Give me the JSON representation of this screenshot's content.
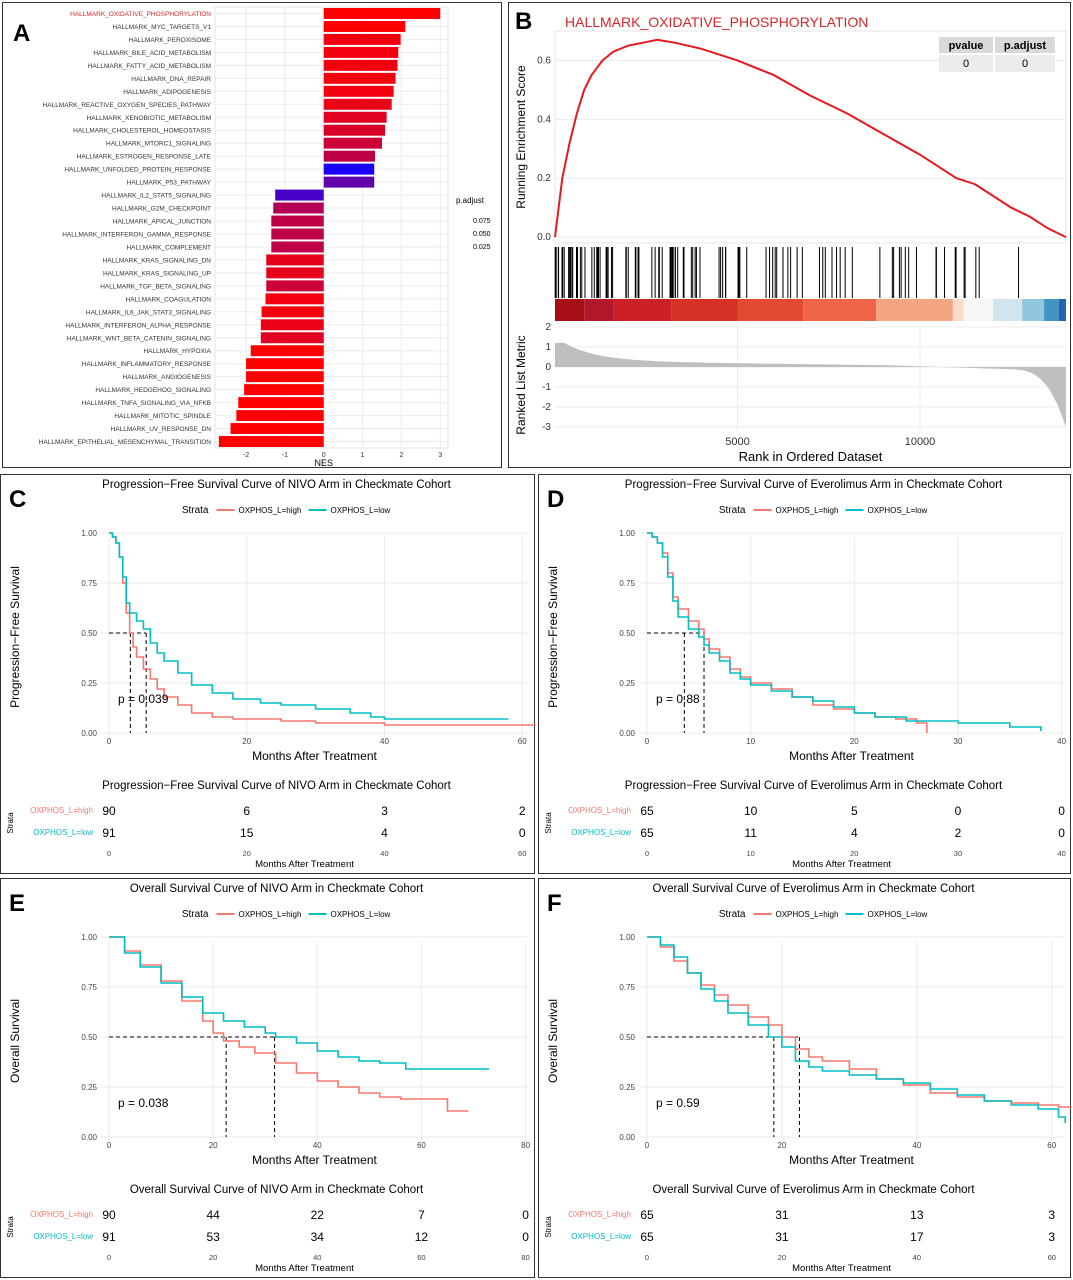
{
  "colors": {
    "high": "#f8766d",
    "low": "#00bfc4",
    "gsea_line": "#e41a1c",
    "ptitle": "#d62728"
  },
  "panelA": {
    "letter": "A",
    "xlabel": "NES",
    "legend_title": "p.adjust",
    "legend_ticks": [
      "0.075",
      "0.050",
      "0.025"
    ],
    "chart_data": {
      "type": "bar",
      "categories": [
        "HALLMARK_OXIDATIVE_PHOSPHORYLATION",
        "HALLMARK_MYC_TARGETS_V1",
        "HALLMARK_PEROXISOME",
        "HALLMARK_BILE_ACID_METABOLISM",
        "HALLMARK_FATTY_ACID_METABOLISM",
        "HALLMARK_DNA_REPAIR",
        "HALLMARK_ADIPOGENESIS",
        "HALLMARK_REACTIVE_OXYGEN_SPECIES_PATHWAY",
        "HALLMARK_XENOBIOTIC_METABOLISM",
        "HALLMARK_CHOLESTEROL_HOMEOSTASIS",
        "HALLMARK_MTORC1_SIGNALING",
        "HALLMARK_ESTROGEN_RESPONSE_LATE",
        "HALLMARK_UNFOLDED_PROTEIN_RESPONSE",
        "HALLMARK_P53_PATHWAY",
        "HALLMARK_IL2_STAT5_SIGNALING",
        "HALLMARK_G2M_CHECKPOINT",
        "HALLMARK_APICAL_JUNCTION",
        "HALLMARK_INTERFERON_GAMMA_RESPONSE",
        "HALLMARK_COMPLEMENT",
        "HALLMARK_KRAS_SIGNALING_DN",
        "HALLMARK_KRAS_SIGNALING_UP",
        "HALLMARK_TGF_BETA_SIGNALING",
        "HALLMARK_COAGULATION",
        "HALLMARK_IL6_JAK_STAT3_SIGNALING",
        "HALLMARK_INTERFERON_ALPHA_RESPONSE",
        "HALLMARK_WNT_BETA_CATENIN_SIGNALING",
        "HALLMARK_HYPOXIA",
        "HALLMARK_INFLAMMATORY_RESPONSE",
        "HALLMARK_ANGIOGENESIS",
        "HALLMARK_HEDGEHOG_SIGNALING",
        "HALLMARK_TNFA_SIGNALING_VIA_NFKB",
        "HALLMARK_MITOTIC_SPINDLE",
        "HALLMARK_UV_RESPONSE_DN",
        "HALLMARK_EPITHELIAL_MESENCHYMAL_TRANSITION"
      ],
      "values": [
        3.0,
        2.1,
        1.98,
        1.92,
        1.9,
        1.85,
        1.8,
        1.75,
        1.62,
        1.58,
        1.5,
        1.32,
        1.3,
        1.3,
        -1.25,
        -1.3,
        -1.35,
        -1.35,
        -1.35,
        -1.48,
        -1.48,
        -1.48,
        -1.5,
        -1.6,
        -1.62,
        -1.62,
        -1.88,
        -2.0,
        -2.0,
        -2.05,
        -2.2,
        -2.25,
        -2.4,
        -2.7
      ],
      "p_adjust": [
        0.0,
        0.0,
        0.005,
        0.005,
        0.005,
        0.005,
        0.005,
        0.008,
        0.012,
        0.015,
        0.02,
        0.025,
        0.088,
        0.06,
        0.07,
        0.03,
        0.025,
        0.025,
        0.025,
        0.01,
        0.01,
        0.02,
        0.005,
        0.005,
        0.008,
        0.012,
        0.0,
        0.0,
        0.0,
        0.0,
        0.0,
        0.0,
        0.0,
        0.0
      ],
      "xlim": [
        -2.8,
        3.2
      ],
      "xticks": [
        "-2",
        "-1",
        "0",
        "1",
        "2",
        "3"
      ]
    }
  },
  "panelB": {
    "letter": "B",
    "title": "HALLMARK_OXIDATIVE_PHOSPHORYLATION",
    "ylabel_top": "Running Enrichment Score",
    "ylabel_bottom": "Ranked List Metric",
    "xlabel": "Rank in Ordered Dataset",
    "table_headers": [
      "pvalue",
      "p.adjust"
    ],
    "table_values": [
      "0",
      "0"
    ],
    "es_ticks": [
      "0.0",
      "0.2",
      "0.4",
      "0.6"
    ],
    "metric_ticks": [
      "2",
      "1",
      "0",
      "-1",
      "-2",
      "-3"
    ],
    "x_ticks": [
      "5000",
      "10000"
    ],
    "chart_data": {
      "type": "line",
      "x": [
        0,
        200,
        400,
        600,
        800,
        1000,
        1300,
        1600,
        2000,
        2400,
        2800,
        3300,
        4000,
        5000,
        6000,
        7000,
        8000,
        9000,
        10000,
        11000,
        11500,
        12000,
        12500,
        13000,
        13500,
        14000
      ],
      "y": [
        0.0,
        0.2,
        0.32,
        0.42,
        0.5,
        0.55,
        0.6,
        0.63,
        0.65,
        0.66,
        0.67,
        0.66,
        0.64,
        0.6,
        0.55,
        0.48,
        0.42,
        0.35,
        0.28,
        0.2,
        0.18,
        0.14,
        0.1,
        0.07,
        0.03,
        0.0
      ],
      "xlim": [
        0,
        14000
      ],
      "ylim": [
        -0.02,
        0.7
      ],
      "metric_ylim": [
        -3.2,
        2.2
      ]
    }
  },
  "km": [
    {
      "letter": "C",
      "title": "Progression−Free Survival Curve of NIVO Arm in Checkmate Cohort",
      "table_title": "Progression−Free Survival Curve of NIVO Arm in Checkmate Cohort",
      "ylabel": "Progression−Free Survival",
      "xlabel": "Months After Treatment",
      "table_xlabel": "Months After Treatment",
      "pvalue": "p = 0.039",
      "strata_label": "Strata",
      "strata_names": [
        "OXPHOS_L=high",
        "OXPHOS_L=low"
      ],
      "xticks": [
        "0",
        "20",
        "40",
        "60"
      ],
      "yticks": [
        "0.00",
        "0.25",
        "0.50",
        "0.75",
        "1.00"
      ],
      "risk_high": [
        "90",
        "6",
        "3",
        "2"
      ],
      "risk_low": [
        "91",
        "15",
        "4",
        "0"
      ],
      "risk_axis_label": "Strata",
      "chart_data": {
        "type": "line",
        "xmax": 62,
        "tick_step": 20,
        "series": [
          {
            "name": "OXPHOS_L=high",
            "x": [
              0,
              0.5,
              1,
              1.5,
              2,
              2.5,
              3,
              3.5,
              4,
              5,
              6,
              7,
              8,
              10,
              12,
              15,
              18,
              22,
              25,
              30,
              40,
              50,
              60,
              62
            ],
            "y": [
              1.0,
              0.98,
              0.95,
              0.88,
              0.75,
              0.6,
              0.5,
              0.43,
              0.38,
              0.32,
              0.27,
              0.22,
              0.18,
              0.14,
              0.1,
              0.08,
              0.07,
              0.07,
              0.06,
              0.05,
              0.04,
              0.04,
              0.04,
              0.04
            ]
          },
          {
            "name": "OXPHOS_L=low",
            "x": [
              0,
              0.5,
              1,
              1.5,
              2,
              2.5,
              3,
              4,
              5,
              6,
              7,
              8,
              10,
              12,
              15,
              18,
              22,
              25,
              30,
              35,
              38,
              40,
              50,
              58
            ],
            "y": [
              1.0,
              0.98,
              0.95,
              0.88,
              0.78,
              0.65,
              0.6,
              0.56,
              0.52,
              0.45,
              0.4,
              0.36,
              0.3,
              0.24,
              0.2,
              0.17,
              0.15,
              0.14,
              0.12,
              0.1,
              0.08,
              0.07,
              0.07,
              0.07
            ]
          }
        ],
        "median_high": 3.1,
        "median_low": 5.4
      }
    },
    {
      "letter": "D",
      "title": "Progression−Free Survival Curve of Everolimus Arm in Checkmate Cohort",
      "table_title": "Progression−Free Survival Curve of Everolimus Arm in Checkmate Cohort",
      "ylabel": "Progression−Free Survival",
      "xlabel": "Months After Treatment",
      "table_xlabel": "Months After Treatment",
      "pvalue": "p = 0.88",
      "strata_label": "Strata",
      "strata_names": [
        "OXPHOS_L=high",
        "OXPHOS_L=low"
      ],
      "xticks": [
        "0",
        "10",
        "20",
        "30",
        "40"
      ],
      "yticks": [
        "0.00",
        "0.25",
        "0.50",
        "0.75",
        "1.00"
      ],
      "risk_high": [
        "65",
        "10",
        "5",
        "0",
        "0"
      ],
      "risk_low": [
        "65",
        "11",
        "4",
        "2",
        "0"
      ],
      "risk_axis_label": "Strata",
      "chart_data": {
        "type": "line",
        "xmax": 41,
        "tick_step": 10,
        "series": [
          {
            "name": "OXPHOS_L=high",
            "x": [
              0,
              0.5,
              1,
              1.5,
              2,
              2.5,
              3,
              4,
              5,
              5.5,
              6,
              7,
              8,
              9,
              10,
              12,
              14,
              16,
              18,
              20,
              22,
              24,
              26,
              27
            ],
            "y": [
              1.0,
              0.98,
              0.95,
              0.9,
              0.8,
              0.68,
              0.62,
              0.56,
              0.52,
              0.47,
              0.42,
              0.38,
              0.32,
              0.28,
              0.25,
              0.22,
              0.18,
              0.14,
              0.12,
              0.1,
              0.08,
              0.07,
              0.05,
              0.0
            ]
          },
          {
            "name": "OXPHOS_L=low",
            "x": [
              0,
              0.5,
              1,
              1.5,
              2,
              2.5,
              3,
              4,
              5,
              5.5,
              6,
              7,
              8,
              9,
              10,
              12,
              14,
              16,
              18,
              20,
              22,
              25,
              30,
              35,
              38
            ],
            "y": [
              1.0,
              0.98,
              0.95,
              0.88,
              0.78,
              0.66,
              0.58,
              0.52,
              0.48,
              0.44,
              0.4,
              0.36,
              0.3,
              0.27,
              0.24,
              0.21,
              0.18,
              0.16,
              0.13,
              0.1,
              0.08,
              0.06,
              0.05,
              0.03,
              0.01
            ]
          }
        ],
        "median_high": 3.6,
        "median_low": 5.5
      }
    },
    {
      "letter": "E",
      "title": "Overall Survival Curve of NIVO Arm in Checkmate Cohort",
      "table_title": "Overall Survival Curve of NIVO Arm in Checkmate Cohort",
      "ylabel": "Overall Survival",
      "xlabel": "Months After Treatment",
      "table_xlabel": "Months After Treatment",
      "pvalue": "p = 0.038",
      "strata_label": "Strata",
      "strata_names": [
        "OXPHOS_L=high",
        "OXPHOS_L=low"
      ],
      "xticks": [
        "0",
        "20",
        "40",
        "60",
        "80"
      ],
      "yticks": [
        "0.00",
        "0.25",
        "0.50",
        "0.75",
        "1.00"
      ],
      "risk_high": [
        "90",
        "44",
        "22",
        "7",
        "0"
      ],
      "risk_low": [
        "91",
        "53",
        "34",
        "12",
        "0"
      ],
      "risk_axis_label": "Strata",
      "chart_data": {
        "type": "line",
        "xmax": 82,
        "tick_step": 20,
        "series": [
          {
            "name": "OXPHOS_L=high",
            "x": [
              0,
              3,
              6,
              10,
              14,
              18,
              20,
              22,
              25,
              28,
              32,
              36,
              40,
              44,
              48,
              52,
              56,
              60,
              65,
              69
            ],
            "y": [
              1.0,
              0.93,
              0.86,
              0.78,
              0.68,
              0.58,
              0.52,
              0.48,
              0.45,
              0.42,
              0.37,
              0.32,
              0.28,
              0.25,
              0.22,
              0.2,
              0.19,
              0.19,
              0.13,
              0.13
            ]
          },
          {
            "name": "OXPHOS_L=low",
            "x": [
              0,
              3,
              6,
              10,
              14,
              18,
              22,
              26,
              30,
              32,
              36,
              40,
              44,
              48,
              52,
              56,
              57,
              60,
              65,
              73
            ],
            "y": [
              1.0,
              0.92,
              0.85,
              0.77,
              0.7,
              0.62,
              0.58,
              0.55,
              0.52,
              0.5,
              0.47,
              0.43,
              0.4,
              0.38,
              0.37,
              0.37,
              0.34,
              0.34,
              0.34,
              0.34
            ]
          }
        ],
        "median_high": 22.5,
        "median_low": 31.8
      }
    },
    {
      "letter": "F",
      "title": "Overall Survival Curve of Everolimus Arm in Checkmate Cohort",
      "table_title": "Overall Survival Curve of Everolimus Arm in Checkmate Cohort",
      "ylabel": "Overall Survival",
      "xlabel": "Months After Treatment",
      "table_xlabel": "Months After Treatment",
      "pvalue": "p = 0.59",
      "strata_label": "Strata",
      "strata_names": [
        "OXPHOS_L=high",
        "OXPHOS_L=low"
      ],
      "xticks": [
        "0",
        "20",
        "40",
        "60"
      ],
      "yticks": [
        "0.00",
        "0.25",
        "0.50",
        "0.75",
        "1.00"
      ],
      "risk_high": [
        "65",
        "31",
        "13",
        "3"
      ],
      "risk_low": [
        "65",
        "31",
        "17",
        "3"
      ],
      "risk_axis_label": "Strata",
      "chart_data": {
        "type": "line",
        "xmax": 63,
        "tick_step": 20,
        "series": [
          {
            "name": "OXPHOS_L=high",
            "x": [
              0,
              2,
              4,
              6,
              8,
              10,
              12,
              15,
              18,
              20,
              22,
              24,
              26,
              30,
              34,
              38,
              42,
              46,
              50,
              54,
              58,
              61,
              63
            ],
            "y": [
              1.0,
              0.95,
              0.88,
              0.82,
              0.76,
              0.71,
              0.66,
              0.6,
              0.56,
              0.5,
              0.44,
              0.4,
              0.38,
              0.34,
              0.29,
              0.26,
              0.22,
              0.2,
              0.18,
              0.17,
              0.16,
              0.15,
              0.15
            ]
          },
          {
            "name": "OXPHOS_L=low",
            "x": [
              0,
              2,
              4,
              6,
              8,
              10,
              12,
              15,
              18,
              20,
              22,
              24,
              26,
              30,
              34,
              38,
              42,
              46,
              50,
              54,
              58,
              61,
              62
            ],
            "y": [
              1.0,
              0.96,
              0.9,
              0.82,
              0.74,
              0.68,
              0.62,
              0.56,
              0.5,
              0.45,
              0.38,
              0.35,
              0.33,
              0.31,
              0.29,
              0.27,
              0.24,
              0.21,
              0.18,
              0.16,
              0.14,
              0.1,
              0.07
            ]
          }
        ],
        "median_high": 18.8,
        "median_low": 22.6
      }
    }
  ]
}
